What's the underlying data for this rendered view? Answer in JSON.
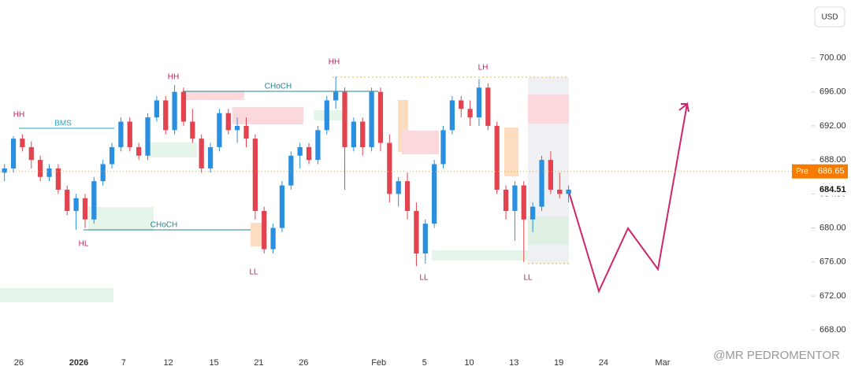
{
  "chart_data": {
    "type": "candlestick",
    "currency": "USD",
    "up_color": "#2a8fe0",
    "down_color": "#e2434f",
    "ohlc": [
      [
        686.5,
        687.5,
        685.5,
        687
      ],
      [
        687,
        690.8,
        686.5,
        690.5
      ],
      [
        690.5,
        691,
        689,
        689.5
      ],
      [
        689.5,
        690.2,
        687,
        688
      ],
      [
        688,
        688.5,
        685.5,
        686
      ],
      [
        686,
        687.5,
        685.5,
        687
      ],
      [
        687,
        687.5,
        684,
        684.5
      ],
      [
        684.5,
        685,
        681.5,
        682
      ],
      [
        682,
        684,
        679.8,
        683.5
      ],
      [
        683.5,
        684,
        680,
        681
      ],
      [
        681,
        686,
        680.5,
        685.5
      ],
      [
        685.5,
        688,
        685,
        687.5
      ],
      [
        687.5,
        690,
        687,
        689.5
      ],
      [
        689.5,
        693,
        689,
        692.5
      ],
      [
        692.5,
        693,
        689,
        689.5
      ],
      [
        689.5,
        690,
        688,
        688.5
      ],
      [
        688.5,
        693.5,
        688,
        693
      ],
      [
        693,
        695.5,
        692.5,
        695
      ],
      [
        695,
        695.5,
        691,
        691.5
      ],
      [
        691.5,
        696.8,
        691,
        696
      ],
      [
        696,
        696.5,
        692,
        692.5
      ],
      [
        692.5,
        694,
        690,
        690.5
      ],
      [
        690.5,
        691,
        686.5,
        687
      ],
      [
        687,
        690,
        686.5,
        689.5
      ],
      [
        689.5,
        694,
        689,
        693.5
      ],
      [
        693.5,
        694,
        691,
        691.5
      ],
      [
        691.5,
        693,
        690,
        692
      ],
      [
        692,
        693,
        689.5,
        690.5
      ],
      [
        690.5,
        691,
        681,
        682
      ],
      [
        682,
        682.5,
        677,
        677.5
      ],
      [
        677.5,
        680.5,
        677,
        680
      ],
      [
        680,
        685.5,
        679.5,
        685
      ],
      [
        685,
        689,
        684.5,
        688.5
      ],
      [
        688.5,
        690,
        687,
        689.5
      ],
      [
        689.5,
        690,
        687.5,
        688
      ],
      [
        688,
        692,
        687.5,
        691.5
      ],
      [
        691.5,
        695.5,
        691,
        695
      ],
      [
        695,
        697.8,
        694,
        696
      ],
      [
        696,
        696.5,
        684.5,
        689.5
      ],
      [
        689.5,
        693,
        689,
        692.5
      ],
      [
        692.5,
        693,
        688.5,
        689.5
      ],
      [
        689.5,
        696.5,
        689,
        696
      ],
      [
        696,
        696.5,
        689,
        690
      ],
      [
        690,
        691,
        683,
        684
      ],
      [
        684,
        686,
        682.5,
        685.5
      ],
      [
        685.5,
        686.5,
        681,
        682
      ],
      [
        682,
        683,
        675.5,
        677
      ],
      [
        677,
        681,
        675.8,
        680.5
      ],
      [
        680.5,
        688,
        680,
        687.5
      ],
      [
        687.5,
        692,
        687,
        691.5
      ],
      [
        691.5,
        695.5,
        691,
        695
      ],
      [
        695,
        695.5,
        693,
        694
      ],
      [
        694,
        695,
        692,
        693
      ],
      [
        693,
        697.5,
        692,
        696.5
      ],
      [
        696.5,
        697,
        691.5,
        692
      ],
      [
        692,
        692.5,
        684,
        684.5
      ],
      [
        684.5,
        685,
        681,
        682
      ],
      [
        682,
        685.5,
        678.5,
        685
      ],
      [
        685,
        685.5,
        676,
        681
      ],
      [
        681,
        683,
        679.5,
        682.5
      ],
      [
        682.5,
        688.5,
        682,
        688
      ],
      [
        688,
        689,
        684,
        684.5
      ],
      [
        684.5,
        686.5,
        683.5,
        684
      ],
      [
        684,
        685,
        683,
        684.51
      ]
    ],
    "xlim": [
      -0.5,
      87.5
    ],
    "xticks": [
      {
        "value": 1.6,
        "label": "26"
      },
      {
        "value": 8.3,
        "label": "2026"
      },
      {
        "value": 13.3,
        "label": "7"
      },
      {
        "value": 18.3,
        "label": "12"
      },
      {
        "value": 23.4,
        "label": "15"
      },
      {
        "value": 28.4,
        "label": "21"
      },
      {
        "value": 33.4,
        "label": "26"
      },
      {
        "value": 41.8,
        "label": "Feb"
      },
      {
        "value": 46.9,
        "label": "5"
      },
      {
        "value": 51.9,
        "label": "10"
      },
      {
        "value": 56.9,
        "label": "13"
      },
      {
        "value": 61.9,
        "label": "19"
      },
      {
        "value": 66.9,
        "label": "24"
      },
      {
        "value": 73.5,
        "label": "Mar"
      }
    ],
    "ylim": [
      664.6,
      706.8
    ],
    "yticks": [
      {
        "value": 668,
        "label": "668.00"
      },
      {
        "value": 672,
        "label": "672.00"
      },
      {
        "value": 676,
        "label": "676.00"
      },
      {
        "value": 680,
        "label": "680.00"
      },
      {
        "value": 684,
        "label": "684.00"
      },
      {
        "value": 688,
        "label": "688.00"
      },
      {
        "value": 692,
        "label": "692.00"
      },
      {
        "value": 696,
        "label": "696.00"
      },
      {
        "value": 700,
        "label": "700.00"
      }
    ],
    "pre_label": "Pre",
    "pre_price": 686.65,
    "last_price": 684.51,
    "annotations": [
      "HH",
      "HH",
      "HH",
      "LH",
      "HL",
      "LL",
      "LL",
      "LL",
      "BMS",
      "CHoCH",
      "CHoCH"
    ],
    "watermark": "@MR PEDROMENTOR"
  }
}
